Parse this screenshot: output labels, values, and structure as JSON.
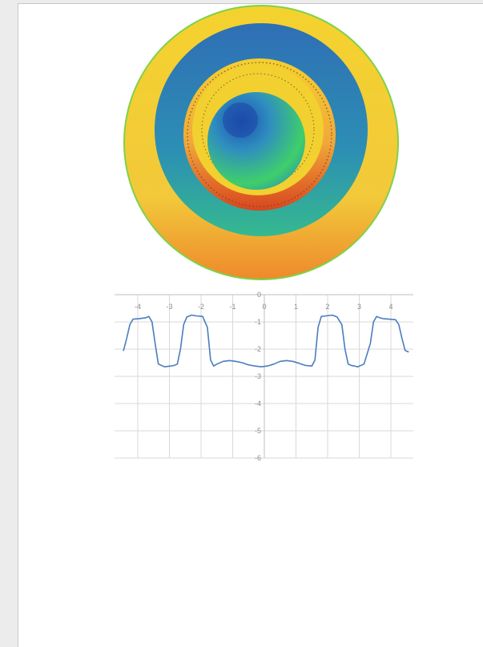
{
  "colors": {
    "page_background": "#ececec",
    "sheet": "#ffffff",
    "line": "#4a7cc0",
    "grid": "#d9d9d9",
    "axis": "#bfbfbf",
    "tick_text": "#8c8c8c"
  },
  "image": {
    "description_icon": "circular-interferogram-image",
    "colormap": [
      "#f4d22e",
      "#2f6fb5",
      "#2c93b2",
      "#36c46b",
      "#e0431f",
      "#f0b63a"
    ]
  },
  "chart_data": {
    "type": "line",
    "title": "",
    "xlabel": "",
    "ylabel": "",
    "xlim": [
      -4.5,
      4.7
    ],
    "ylim": [
      -6,
      0
    ],
    "x_ticks": [
      -4,
      -3,
      -2,
      -1,
      0,
      1,
      2,
      3,
      4
    ],
    "y_ticks": [
      0,
      -1,
      -2,
      -3,
      -4,
      -5,
      -6
    ],
    "x_tick_labels": [
      "-4",
      "-3",
      "-2",
      "-1",
      "0",
      "1",
      "2",
      "3",
      "4"
    ],
    "y_tick_labels": [
      "0",
      "-1",
      "-2",
      "-3",
      "-4",
      "-5",
      "-6"
    ],
    "grid": true,
    "series": [
      {
        "x": [
          -4.45,
          -4.35,
          -4.25,
          -4.15,
          -3.95,
          -3.75,
          -3.65,
          -3.55,
          -3.45,
          -3.35,
          -3.15,
          -2.95,
          -2.85,
          -2.75,
          -2.65,
          -2.55,
          -2.45,
          -2.3,
          -2.15,
          -1.95,
          -1.8,
          -1.7,
          -1.6,
          -1.5,
          -1.3,
          -1.1,
          -0.9,
          -0.7,
          -0.5,
          -0.3,
          -0.1,
          0.1,
          0.3,
          0.5,
          0.7,
          0.9,
          1.1,
          1.3,
          1.5,
          1.6,
          1.7,
          1.8,
          1.95,
          2.15,
          2.3,
          2.45,
          2.55,
          2.65,
          2.75,
          2.85,
          2.95,
          3.15,
          3.35,
          3.45,
          3.55,
          3.65,
          3.75,
          3.95,
          4.15,
          4.25,
          4.35,
          4.45,
          4.55
        ],
        "y": [
          -2.05,
          -1.6,
          -1.1,
          -0.9,
          -0.88,
          -0.85,
          -0.8,
          -1.0,
          -1.8,
          -2.55,
          -2.65,
          -2.62,
          -2.6,
          -2.55,
          -2.0,
          -1.1,
          -0.82,
          -0.75,
          -0.78,
          -0.8,
          -1.2,
          -2.4,
          -2.62,
          -2.55,
          -2.45,
          -2.42,
          -2.45,
          -2.5,
          -2.58,
          -2.62,
          -2.65,
          -2.62,
          -2.55,
          -2.45,
          -2.42,
          -2.45,
          -2.52,
          -2.6,
          -2.62,
          -2.4,
          -1.2,
          -0.8,
          -0.78,
          -0.75,
          -0.82,
          -1.1,
          -2.0,
          -2.55,
          -2.6,
          -2.62,
          -2.65,
          -2.55,
          -1.8,
          -1.0,
          -0.8,
          -0.85,
          -0.88,
          -0.9,
          -0.92,
          -1.1,
          -1.6,
          -2.05,
          -2.1
        ]
      }
    ]
  }
}
